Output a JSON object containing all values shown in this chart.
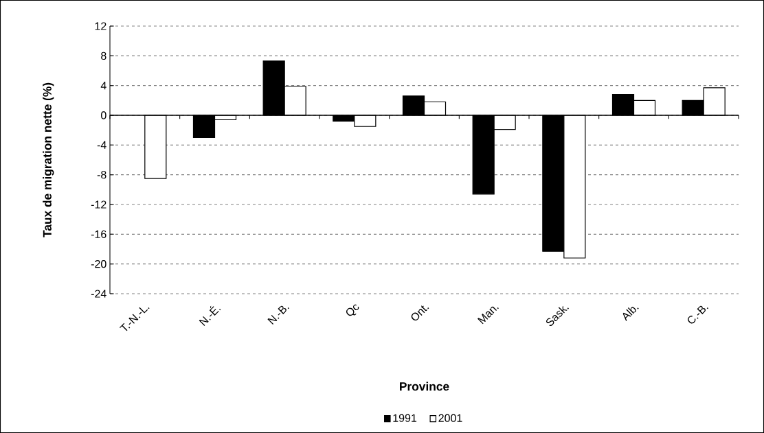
{
  "chart_data": {
    "type": "bar",
    "xlabel": "Province",
    "ylabel": "Taux de migration nette (%)",
    "categories": [
      "T.-N.-L.",
      "N.-É.",
      "N.-B.",
      "Qc",
      "Ont.",
      "Man.",
      "Sask.",
      "Alb.",
      "C.-B."
    ],
    "series": [
      {
        "name": "1991",
        "color": "#000000",
        "values": [
          null,
          -3.0,
          7.3,
          -0.8,
          2.6,
          -10.6,
          -18.3,
          2.8,
          2.0
        ]
      },
      {
        "name": "2001",
        "color": "#ffffff",
        "values": [
          -8.5,
          -0.6,
          3.9,
          -1.5,
          1.8,
          -1.9,
          -19.2,
          2.0,
          3.7
        ]
      }
    ],
    "ylim": [
      -24,
      12
    ],
    "yticks": [
      -24,
      -20,
      -16,
      -12,
      -8,
      -4,
      0,
      4,
      8,
      12
    ],
    "grid": "y",
    "legend": "bottom"
  }
}
